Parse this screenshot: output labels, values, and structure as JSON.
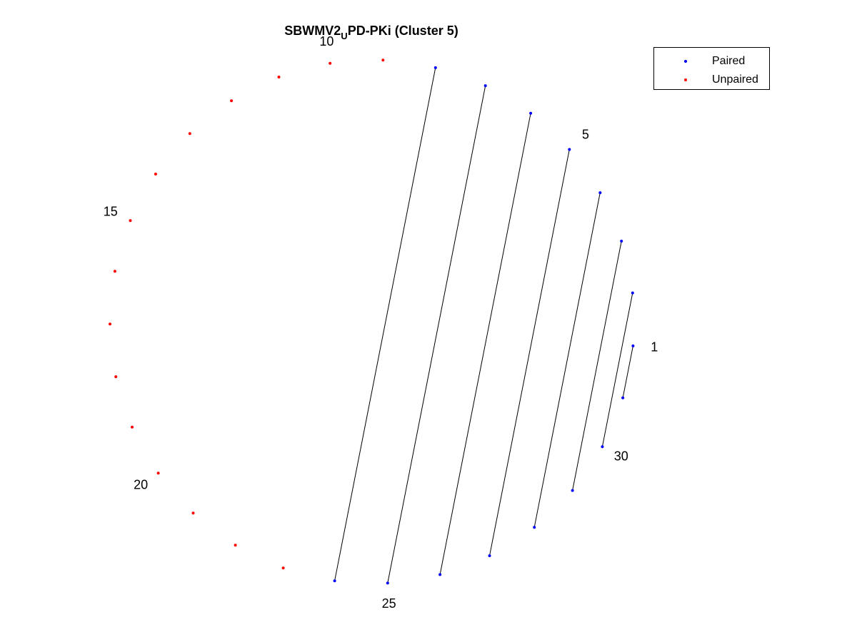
{
  "figure": {
    "title_main": "SBWMV2",
    "title_sub": "U",
    "title_rest": "PD-PKi (Cluster 5)",
    "colors": {
      "paired": "#0000ff",
      "unpaired": "#ff0000",
      "arc": "#000000"
    }
  },
  "legend": {
    "entries": [
      {
        "label": "Paired",
        "color": "#0000ff"
      },
      {
        "label": "Unpaired",
        "color": "#ff0000"
      }
    ]
  },
  "chart_data": {
    "type": "arc diagram",
    "sequence_length": 31,
    "pairs": [
      [
        1,
        31
      ],
      [
        2,
        30
      ],
      [
        3,
        29
      ],
      [
        4,
        28
      ],
      [
        5,
        27
      ],
      [
        6,
        26
      ],
      [
        7,
        25
      ],
      [
        8,
        24
      ]
    ],
    "paired_positions": [
      1,
      2,
      3,
      4,
      5,
      6,
      7,
      8,
      24,
      25,
      26,
      27,
      28,
      29,
      30,
      31
    ],
    "unpaired_positions": [
      9,
      10,
      11,
      12,
      13,
      14,
      15,
      16,
      17,
      18,
      19,
      20,
      21,
      22,
      23
    ],
    "position_labels": [
      "1",
      "5",
      "10",
      "15",
      "20",
      "25",
      "30"
    ],
    "position_label_indices": [
      1,
      5,
      10,
      15,
      20,
      25,
      30
    ]
  }
}
